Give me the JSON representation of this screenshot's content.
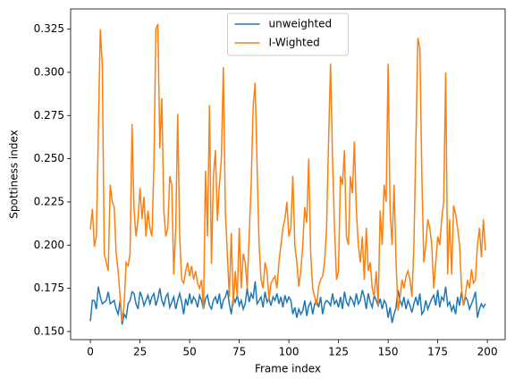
{
  "chart_data": {
    "type": "line",
    "xlabel": "Frame index",
    "ylabel": "Spottiness index",
    "xlim": [
      -9.95,
      208.95
    ],
    "ylim": [
      0.1453,
      0.3367
    ],
    "xticks": [
      0,
      25,
      50,
      75,
      100,
      125,
      150,
      175,
      200
    ],
    "yticks": [
      {
        "value": 0.15,
        "label": "0.150"
      },
      0.175,
      {
        "value": 0.2,
        "label": "0.200"
      },
      0.225,
      {
        "value": 0.25,
        "label": "0.250"
      },
      0.275,
      {
        "value": 0.3,
        "label": "0.300"
      },
      0.325
    ],
    "legend": "upper center",
    "x": [
      0,
      1,
      2,
      3,
      4,
      5,
      6,
      7,
      8,
      9,
      10,
      11,
      12,
      13,
      14,
      15,
      16,
      17,
      18,
      19,
      20,
      21,
      22,
      23,
      24,
      25,
      26,
      27,
      28,
      29,
      30,
      31,
      32,
      33,
      34,
      35,
      36,
      37,
      38,
      39,
      40,
      41,
      42,
      43,
      44,
      45,
      46,
      47,
      48,
      49,
      50,
      51,
      52,
      53,
      54,
      55,
      56,
      57,
      58,
      59,
      60,
      61,
      62,
      63,
      64,
      65,
      66,
      67,
      68,
      69,
      70,
      71,
      72,
      73,
      74,
      75,
      76,
      77,
      78,
      79,
      80,
      81,
      82,
      83,
      84,
      85,
      86,
      87,
      88,
      89,
      90,
      91,
      92,
      93,
      94,
      95,
      96,
      97,
      98,
      99,
      100,
      101,
      102,
      103,
      104,
      105,
      106,
      107,
      108,
      109,
      110,
      111,
      112,
      113,
      114,
      115,
      116,
      117,
      118,
      119,
      120,
      121,
      122,
      123,
      124,
      125,
      126,
      127,
      128,
      129,
      130,
      131,
      132,
      133,
      134,
      135,
      136,
      137,
      138,
      139,
      140,
      141,
      142,
      143,
      144,
      145,
      146,
      147,
      148,
      149,
      150,
      151,
      152,
      153,
      154,
      155,
      156,
      157,
      158,
      159,
      160,
      161,
      162,
      163,
      164,
      165,
      166,
      167,
      168,
      169,
      170,
      171,
      172,
      173,
      174,
      175,
      176,
      177,
      178,
      179,
      180,
      181,
      182,
      183,
      184,
      185,
      186,
      187,
      188,
      189,
      190,
      191,
      192,
      193,
      194,
      195,
      196,
      197,
      198,
      199
    ],
    "series": [
      {
        "name": "unweighted",
        "color": "#1f77b4",
        "values": [
          0.156,
          0.168,
          0.168,
          0.163,
          0.176,
          0.17,
          0.166,
          0.167,
          0.168,
          0.173,
          0.166,
          0.167,
          0.168,
          0.163,
          0.16,
          0.168,
          0.154,
          0.16,
          0.158,
          0.166,
          0.168,
          0.173,
          0.172,
          0.166,
          0.163,
          0.173,
          0.17,
          0.165,
          0.168,
          0.171,
          0.166,
          0.17,
          0.172,
          0.165,
          0.169,
          0.175,
          0.168,
          0.165,
          0.17,
          0.172,
          0.164,
          0.167,
          0.17,
          0.163,
          0.168,
          0.172,
          0.167,
          0.16,
          0.169,
          0.165,
          0.172,
          0.166,
          0.17,
          0.168,
          0.164,
          0.171,
          0.168,
          0.163,
          0.169,
          0.171,
          0.165,
          0.163,
          0.168,
          0.17,
          0.166,
          0.172,
          0.163,
          0.168,
          0.17,
          0.174,
          0.166,
          0.16,
          0.17,
          0.167,
          0.171,
          0.165,
          0.168,
          0.163,
          0.166,
          0.175,
          0.167,
          0.172,
          0.169,
          0.179,
          0.166,
          0.168,
          0.17,
          0.164,
          0.173,
          0.167,
          0.169,
          0.165,
          0.17,
          0.168,
          0.172,
          0.166,
          0.17,
          0.164,
          0.171,
          0.167,
          0.17,
          0.168,
          0.16,
          0.164,
          0.158,
          0.163,
          0.16,
          0.162,
          0.168,
          0.159,
          0.165,
          0.167,
          0.16,
          0.166,
          0.168,
          0.164,
          0.17,
          0.16,
          0.166,
          0.168,
          0.167,
          0.165,
          0.172,
          0.166,
          0.168,
          0.164,
          0.17,
          0.163,
          0.173,
          0.167,
          0.165,
          0.17,
          0.168,
          0.165,
          0.172,
          0.166,
          0.168,
          0.174,
          0.17,
          0.163,
          0.172,
          0.167,
          0.164,
          0.171,
          0.168,
          0.165,
          0.169,
          0.163,
          0.168,
          0.166,
          0.158,
          0.164,
          0.155,
          0.16,
          0.164,
          0.174,
          0.168,
          0.165,
          0.17,
          0.163,
          0.168,
          0.165,
          0.161,
          0.166,
          0.17,
          0.165,
          0.172,
          0.16,
          0.162,
          0.168,
          0.163,
          0.166,
          0.169,
          0.171,
          0.165,
          0.174,
          0.164,
          0.17,
          0.168,
          0.176,
          0.165,
          0.167,
          0.162,
          0.165,
          0.16,
          0.17,
          0.165,
          0.173,
          0.165,
          0.17,
          0.168,
          0.163,
          0.166,
          0.169,
          0.173,
          0.158,
          0.163,
          0.166,
          0.164,
          0.166
        ]
      },
      {
        "name": "I-Wighted",
        "color": "#ff7f0e",
        "values": [
          0.209,
          0.221,
          0.199,
          0.205,
          0.265,
          0.325,
          0.305,
          0.195,
          0.19,
          0.185,
          0.235,
          0.225,
          0.222,
          0.195,
          0.185,
          0.17,
          0.156,
          0.165,
          0.19,
          0.188,
          0.195,
          0.27,
          0.22,
          0.205,
          0.215,
          0.233,
          0.215,
          0.228,
          0.205,
          0.22,
          0.21,
          0.205,
          0.245,
          0.325,
          0.328,
          0.256,
          0.285,
          0.22,
          0.205,
          0.21,
          0.24,
          0.235,
          0.183,
          0.21,
          0.276,
          0.205,
          0.18,
          0.178,
          0.185,
          0.19,
          0.182,
          0.188,
          0.18,
          0.185,
          0.178,
          0.175,
          0.18,
          0.163,
          0.243,
          0.205,
          0.281,
          0.189,
          0.24,
          0.255,
          0.214,
          0.235,
          0.25,
          0.303,
          0.22,
          0.195,
          0.17,
          0.207,
          0.165,
          0.185,
          0.17,
          0.21,
          0.175,
          0.195,
          0.19,
          0.175,
          0.205,
          0.235,
          0.28,
          0.294,
          0.245,
          0.2,
          0.18,
          0.175,
          0.19,
          0.185,
          0.168,
          0.178,
          0.18,
          0.182,
          0.175,
          0.19,
          0.2,
          0.21,
          0.215,
          0.225,
          0.205,
          0.21,
          0.24,
          0.2,
          0.19,
          0.176,
          0.185,
          0.2,
          0.222,
          0.213,
          0.25,
          0.195,
          0.175,
          0.17,
          0.165,
          0.176,
          0.18,
          0.182,
          0.19,
          0.21,
          0.26,
          0.305,
          0.25,
          0.21,
          0.18,
          0.185,
          0.24,
          0.235,
          0.255,
          0.205,
          0.2,
          0.24,
          0.23,
          0.26,
          0.22,
          0.2,
          0.19,
          0.205,
          0.18,
          0.21,
          0.185,
          0.19,
          0.175,
          0.17,
          0.185,
          0.165,
          0.22,
          0.2,
          0.235,
          0.225,
          0.305,
          0.22,
          0.2,
          0.235,
          0.19,
          0.162,
          0.17,
          0.18,
          0.175,
          0.182,
          0.185,
          0.18,
          0.17,
          0.2,
          0.26,
          0.32,
          0.314,
          0.24,
          0.19,
          0.2,
          0.215,
          0.21,
          0.2,
          0.175,
          0.19,
          0.205,
          0.2,
          0.215,
          0.225,
          0.3,
          0.183,
          0.215,
          0.183,
          0.223,
          0.218,
          0.21,
          0.2,
          0.175,
          0.165,
          0.172,
          0.18,
          0.175,
          0.186,
          0.178,
          0.18,
          0.2,
          0.21,
          0.193,
          0.215,
          0.197
        ]
      }
    ]
  }
}
